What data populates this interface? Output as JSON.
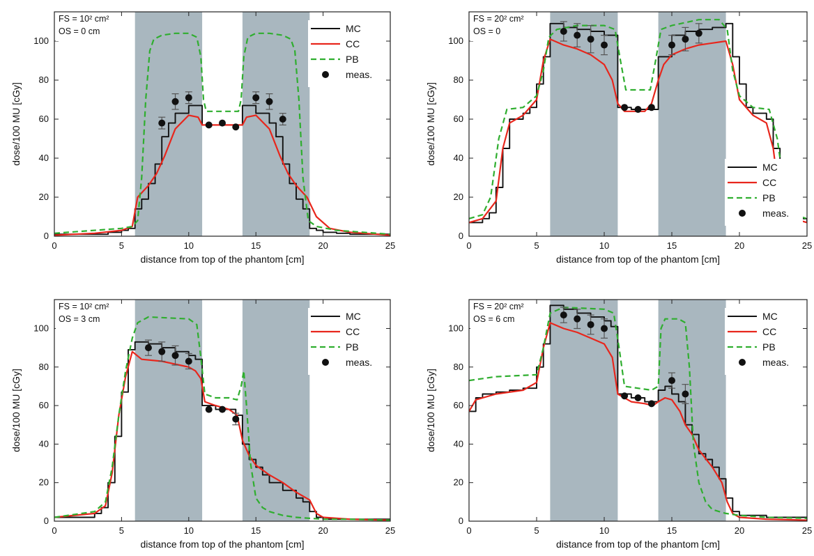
{
  "figure": {
    "colors": {
      "MC": "#111111",
      "CC": "#e8261c",
      "PB": "#2fae2f",
      "meas": "#111111",
      "shade": "#a9b7bf"
    }
  },
  "chart_data": [
    {
      "type": "line",
      "panel": "top-left",
      "annotation": [
        "FS = 10² cm²",
        "OS = 0 cm"
      ],
      "xlabel": "distance from top of the phantom [cm]",
      "ylabel": "dose/100 MU [cGy]",
      "xlim": [
        0,
        25
      ],
      "ylim": [
        0,
        115
      ],
      "xticks": [
        0,
        5,
        10,
        15,
        20,
        25
      ],
      "yticks": [
        0,
        20,
        40,
        60,
        80,
        100
      ],
      "shaded_regions": [
        [
          6,
          11
        ],
        [
          14,
          19
        ]
      ],
      "legend": {
        "position": "top-right",
        "entries": [
          "MC",
          "CC",
          "PB",
          "meas."
        ]
      },
      "series": [
        {
          "name": "MC",
          "style": "step",
          "x": [
            0,
            4,
            5,
            5.5,
            6,
            6.5,
            7,
            7.5,
            8,
            8.5,
            9,
            10,
            11,
            12,
            13,
            14,
            15,
            16,
            16.5,
            17,
            17.5,
            18,
            18.5,
            19,
            19.5,
            20,
            21,
            22,
            23,
            25
          ],
          "y": [
            1,
            2,
            3,
            4,
            14,
            19,
            27,
            37,
            51,
            58,
            63,
            67,
            57,
            57,
            57,
            67,
            63,
            58,
            51,
            37,
            27,
            19,
            14,
            4,
            3,
            2,
            1.5,
            1,
            1,
            1
          ]
        },
        {
          "name": "CC",
          "style": "line",
          "x": [
            0,
            3,
            5,
            5.8,
            6.2,
            7,
            7.6,
            8.2,
            9,
            10,
            10.7,
            11,
            13,
            14,
            14.3,
            15,
            16,
            16.8,
            17.4,
            18,
            18.8,
            19.5,
            20.5,
            22,
            25
          ],
          "y": [
            0.5,
            1.5,
            3,
            5,
            20,
            26,
            32,
            41,
            55,
            62,
            61,
            57,
            57,
            57,
            61,
            62,
            55,
            41,
            32,
            26,
            20,
            10,
            4,
            2,
            0.5
          ]
        },
        {
          "name": "PB",
          "style": "dashed",
          "x": [
            0,
            5,
            5.8,
            6.2,
            6.5,
            6.8,
            7.1,
            7.4,
            8,
            9,
            10,
            10.6,
            10.9,
            11.1,
            11.3,
            12,
            13,
            13.7,
            13.9,
            14.1,
            14.4,
            15,
            16,
            17,
            17.6,
            17.9,
            18.2,
            18.5,
            18.9,
            19.5,
            21,
            25
          ],
          "y": [
            1.5,
            4,
            5,
            8,
            30,
            70,
            95,
            101,
            103,
            104,
            104,
            102,
            92,
            70,
            64,
            64,
            64,
            64,
            70,
            92,
            102,
            104,
            104,
            103,
            101,
            95,
            70,
            30,
            8,
            5,
            3,
            1
          ]
        },
        {
          "name": "meas.",
          "style": "marker",
          "x": [
            8,
            9,
            10,
            11.5,
            12.5,
            13.5,
            15,
            16,
            17
          ],
          "y": [
            58,
            69,
            71,
            57,
            58,
            56,
            71,
            69,
            60
          ],
          "err": [
            3,
            4,
            3,
            0,
            0,
            0,
            3,
            4,
            3
          ]
        }
      ]
    },
    {
      "type": "line",
      "panel": "top-right",
      "annotation": [
        "FS = 20² cm²",
        "OS = 0"
      ],
      "xlabel": "distance from top of the phantom [cm]",
      "ylabel": "dose/100 MU [cGy]",
      "xlim": [
        0,
        25
      ],
      "ylim": [
        0,
        115
      ],
      "xticks": [
        0,
        5,
        10,
        15,
        20,
        25
      ],
      "yticks": [
        0,
        20,
        40,
        60,
        80,
        100
      ],
      "shaded_regions": [
        [
          6,
          11
        ],
        [
          14,
          19
        ]
      ],
      "legend": {
        "position": "center-right",
        "entries": [
          "MC",
          "CC",
          "PB",
          "meas."
        ]
      },
      "series": [
        {
          "name": "MC",
          "style": "step",
          "x": [
            0,
            1,
            1.5,
            2,
            2.5,
            3,
            4,
            4.5,
            5,
            5.5,
            6,
            7,
            8,
            9,
            10,
            11,
            12,
            13,
            14,
            15,
            16,
            17,
            18,
            19,
            19.5,
            20,
            20.5,
            21,
            22,
            22.5,
            23,
            23.5,
            24,
            25
          ],
          "y": [
            7,
            9,
            12,
            25,
            45,
            60,
            63,
            66,
            78,
            92,
            109,
            107,
            106,
            105,
            103,
            66,
            65,
            65,
            92,
            103,
            105,
            106,
            107,
            109,
            92,
            78,
            66,
            63,
            60,
            45,
            25,
            12,
            9,
            7
          ]
        },
        {
          "name": "CC",
          "style": "line",
          "x": [
            0,
            1,
            2,
            2.5,
            3,
            4,
            5,
            5.5,
            6,
            7,
            8,
            9,
            10,
            10.6,
            11,
            11.5,
            13,
            13.5,
            14,
            14.4,
            15,
            16,
            17,
            18,
            19,
            19.5,
            20,
            21,
            22,
            22.5,
            23,
            24,
            25
          ],
          "y": [
            7,
            9,
            18,
            45,
            58,
            62,
            70,
            90,
            101,
            98,
            96,
            93,
            88,
            80,
            68,
            64,
            64,
            68,
            80,
            88,
            93,
            96,
            98,
            99,
            100,
            88,
            70,
            62,
            58,
            45,
            18,
            9,
            7
          ]
        },
        {
          "name": "PB",
          "style": "dashed",
          "x": [
            0,
            1,
            1.6,
            2.2,
            2.8,
            4,
            5,
            5.5,
            5.9,
            6.5,
            8,
            10,
            10.8,
            11.2,
            11.6,
            13.4,
            13.8,
            14.2,
            15,
            17,
            18.5,
            19.1,
            19.5,
            20,
            21,
            22.2,
            22.8,
            23.4,
            24,
            25
          ],
          "y": [
            9,
            11,
            20,
            50,
            65,
            66,
            72,
            85,
            102,
            106,
            108,
            108,
            106,
            90,
            75,
            75,
            90,
            106,
            108,
            111,
            111,
            106,
            85,
            72,
            66,
            65,
            50,
            20,
            11,
            9
          ]
        },
        {
          "name": "meas.",
          "style": "marker",
          "x": [
            7,
            8,
            9,
            10,
            11.5,
            12.5,
            13.5,
            15,
            16,
            17
          ],
          "y": [
            105,
            103,
            101,
            98,
            66,
            65,
            66,
            98,
            101,
            104
          ],
          "err": [
            5,
            6,
            7,
            5,
            0,
            0,
            0,
            5,
            6,
            5
          ]
        }
      ]
    },
    {
      "type": "line",
      "panel": "bottom-left",
      "annotation": [
        "FS = 10² cm²",
        "OS = 3 cm"
      ],
      "xlabel": "distance from top of the phantom [cm]",
      "ylabel": "dose/100 MU [cGy]",
      "xlim": [
        0,
        25
      ],
      "ylim": [
        0,
        115
      ],
      "xticks": [
        0,
        5,
        10,
        15,
        20,
        25
      ],
      "yticks": [
        0,
        20,
        40,
        60,
        80,
        100
      ],
      "shaded_regions": [
        [
          6,
          11
        ],
        [
          14,
          19
        ]
      ],
      "legend": {
        "position": "top-right",
        "entries": [
          "MC",
          "CC",
          "PB",
          "meas."
        ]
      },
      "series": [
        {
          "name": "MC",
          "style": "step",
          "x": [
            0,
            3,
            3.5,
            4,
            4.5,
            5,
            5.5,
            6,
            7,
            8,
            9,
            10,
            10.5,
            11,
            12,
            13,
            13.5,
            14,
            14.5,
            15,
            15.5,
            16,
            17,
            18,
            18.5,
            19,
            19.5,
            20,
            22,
            25
          ],
          "y": [
            2,
            4,
            7,
            20,
            44,
            67,
            89,
            93,
            92,
            90,
            88,
            86,
            84,
            60,
            58,
            58,
            55,
            40,
            32,
            28,
            24,
            20,
            16,
            12,
            10,
            5,
            2,
            1,
            1,
            0.5
          ]
        },
        {
          "name": "CC",
          "style": "line",
          "x": [
            0,
            3,
            3.8,
            4.3,
            4.8,
            5.3,
            5.8,
            6.5,
            8,
            10,
            10.5,
            10.9,
            11.2,
            12,
            13,
            13.6,
            14,
            14.5,
            15,
            16,
            17,
            18,
            19,
            19.5,
            20,
            22,
            25
          ],
          "y": [
            2,
            4,
            8,
            25,
            55,
            75,
            88,
            84,
            83,
            80,
            78,
            74,
            62,
            60,
            58,
            55,
            42,
            34,
            29,
            24,
            20,
            15,
            11,
            4,
            2,
            1,
            0.5
          ]
        },
        {
          "name": "PB",
          "style": "dashed",
          "x": [
            0,
            3,
            3.8,
            4.3,
            4.8,
            5.3,
            5.8,
            6.2,
            7,
            10,
            10.6,
            10.9,
            11.2,
            12,
            13,
            13.6,
            13.9,
            14.1,
            14.3,
            14.6,
            15,
            15.5,
            16,
            17,
            18,
            19,
            20,
            22,
            25
          ],
          "y": [
            2,
            5,
            10,
            28,
            55,
            78,
            95,
            103,
            106,
            105,
            102,
            85,
            66,
            64,
            64,
            63,
            70,
            78,
            60,
            30,
            12,
            7,
            5,
            3,
            2,
            1.5,
            1,
            1,
            0.5
          ]
        },
        {
          "name": "meas.",
          "style": "marker",
          "x": [
            7,
            8,
            9,
            10,
            11.5,
            12.5,
            13.5
          ],
          "y": [
            90,
            88,
            86,
            83,
            58,
            58,
            53
          ],
          "err": [
            4,
            5,
            5,
            4,
            0,
            0,
            3
          ]
        }
      ]
    },
    {
      "type": "line",
      "panel": "bottom-right",
      "annotation": [
        "FS = 20² cm²",
        "OS = 6 cm"
      ],
      "xlabel": "distance from top of the phantom [cm]",
      "ylabel": "dose/100 MU [cGy]",
      "xlim": [
        0,
        25
      ],
      "ylim": [
        0,
        115
      ],
      "xticks": [
        0,
        5,
        10,
        15,
        20,
        25
      ],
      "yticks": [
        0,
        20,
        40,
        60,
        80,
        100
      ],
      "shaded_regions": [
        [
          6,
          11
        ],
        [
          14,
          19
        ]
      ],
      "legend": {
        "position": "top-right",
        "entries": [
          "MC",
          "CC",
          "PB",
          "meas."
        ]
      },
      "series": [
        {
          "name": "MC",
          "style": "step",
          "x": [
            0,
            0.5,
            1,
            2,
            3,
            4,
            5,
            5.5,
            6,
            7,
            8,
            9,
            10,
            10.5,
            11,
            12,
            13,
            14,
            14.5,
            15,
            15.5,
            16,
            16.5,
            17,
            17.5,
            18,
            18.5,
            19,
            19.5,
            20,
            22,
            25
          ],
          "y": [
            57,
            64,
            66,
            67,
            68,
            69,
            80,
            92,
            112,
            110,
            108,
            106,
            104,
            101,
            66,
            64,
            62,
            68,
            70,
            66,
            62,
            50,
            45,
            35,
            32,
            28,
            22,
            12,
            5,
            3,
            2,
            1
          ]
        },
        {
          "name": "CC",
          "style": "line",
          "x": [
            0,
            0.5,
            2,
            4,
            5,
            5.5,
            6,
            7,
            8,
            9,
            10,
            10.6,
            11,
            12,
            13,
            13.6,
            14,
            14.5,
            15,
            15.6,
            16,
            16.5,
            17,
            18,
            18.7,
            19.1,
            19.5,
            20,
            22,
            25
          ],
          "y": [
            57,
            63,
            66,
            68,
            72,
            90,
            103,
            100,
            98,
            95,
            92,
            85,
            66,
            62,
            61,
            60,
            62,
            64,
            63,
            57,
            50,
            45,
            37,
            28,
            20,
            10,
            4,
            2,
            1,
            0.5
          ]
        },
        {
          "name": "PB",
          "style": "dashed",
          "x": [
            0,
            2,
            5,
            5.5,
            6,
            7,
            10,
            10.7,
            11.1,
            11.5,
            13.5,
            14,
            14.2,
            14.5,
            15.5,
            16,
            16.3,
            16.6,
            17,
            17.5,
            18,
            19,
            20,
            22,
            25
          ],
          "y": [
            73,
            75,
            76,
            90,
            108,
            111,
            110,
            108,
            90,
            70,
            68,
            70,
            100,
            105,
            105,
            103,
            80,
            40,
            20,
            10,
            6,
            4,
            3,
            2,
            1.5
          ]
        },
        {
          "name": "meas.",
          "style": "marker",
          "x": [
            7,
            8,
            9,
            10,
            11.5,
            12.5,
            13.5,
            15,
            16
          ],
          "y": [
            107,
            105,
            102,
            100,
            65,
            64,
            61,
            73,
            66
          ],
          "err": [
            4,
            5,
            5,
            5,
            0,
            0,
            0,
            4,
            5
          ]
        }
      ]
    }
  ]
}
